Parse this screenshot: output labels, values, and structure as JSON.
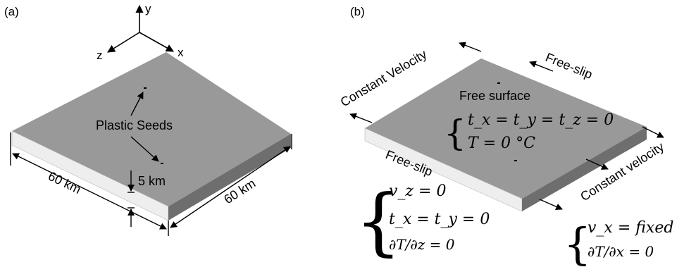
{
  "panel_a": {
    "label": "(a)",
    "axes": {
      "y": "y",
      "z": "z",
      "x": "x"
    },
    "seeds_label": "Plastic Seeds",
    "thickness_label": "5 km",
    "width_label": "60 km",
    "depth_label": "60 km"
  },
  "panel_b": {
    "label": "(b)",
    "constant_velocity_left": "Constant Velocity",
    "constant_velocity_right": "Constant velocity",
    "free_slip_top": "Free-slip",
    "free_slip_left": "Free-slip",
    "free_surface_title": "Free surface",
    "free_surface_eq1": "t_x = t_y = t_z = 0",
    "free_surface_eq2": "T = 0 °C",
    "bc_z_eq1": "v_z = 0",
    "bc_z_eq2": "t_x = t_y = 0",
    "bc_z_eq3": "∂T/∂z = 0",
    "bc_x_eq1": "v_x = fixed",
    "bc_x_eq2": "∂T/∂x = 0"
  },
  "colors": {
    "top_face": "#999999",
    "right_face": "#6e6e6e",
    "front_face": "#eeeeee",
    "ink": "#000000"
  }
}
